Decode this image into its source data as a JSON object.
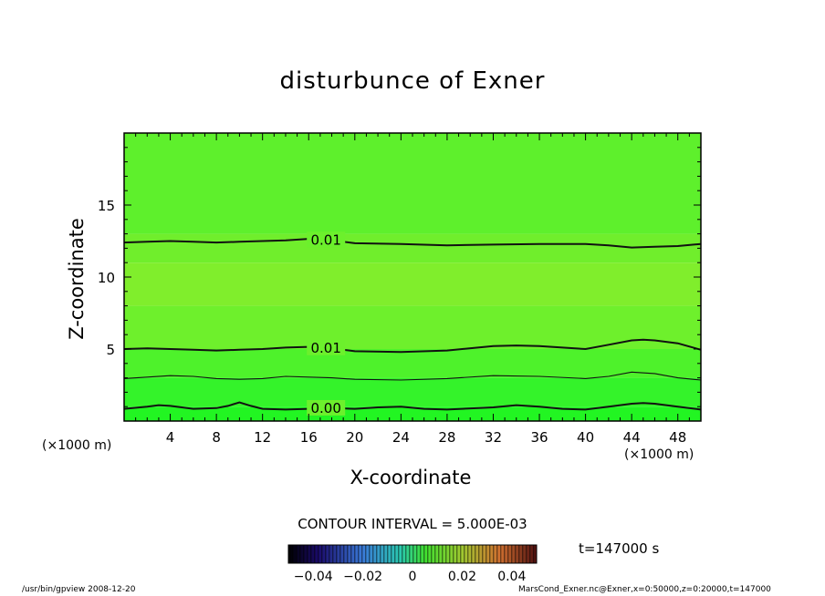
{
  "chart_data": {
    "type": "heatmap",
    "title": "disturbunce of Exner",
    "xlabel": "X-coordinate",
    "ylabel": "Z-coordinate",
    "x_unit_label": "(×1000 m)",
    "xlim": [
      0,
      50
    ],
    "ylim": [
      0,
      20
    ],
    "x_ticks": [
      4,
      8,
      12,
      16,
      20,
      24,
      28,
      32,
      36,
      40,
      44,
      48
    ],
    "y_ticks": [
      5,
      10,
      15
    ],
    "contour_interval_text": "CONTOUR INTERVAL = 5.000E-03",
    "colorbar": {
      "range": [
        -0.05,
        0.05
      ],
      "tick_values": [
        -0.04,
        -0.02,
        0,
        0.02,
        0.04
      ],
      "tick_labels": [
        "−0.04",
        "−0.02",
        "0",
        "0.02",
        "0.04"
      ]
    },
    "field_bands": [
      {
        "z_from": 0,
        "z_to": 1,
        "color": "#22f522"
      },
      {
        "z_from": 1,
        "z_to": 3,
        "color": "#34f32a"
      },
      {
        "z_from": 3,
        "z_to": 5,
        "color": "#4ef22b"
      },
      {
        "z_from": 5,
        "z_to": 8,
        "color": "#6ef02c"
      },
      {
        "z_from": 8,
        "z_to": 11,
        "color": "#80ee2c"
      },
      {
        "z_from": 11,
        "z_to": 13,
        "color": "#70ee2c"
      },
      {
        "z_from": 13,
        "z_to": 20,
        "color": "#5ef02c"
      }
    ],
    "contours": [
      {
        "label": "0.01",
        "label_x": 17.5,
        "weight": "bold",
        "x": [
          0,
          2,
          4,
          6,
          8,
          10,
          12,
          14,
          16,
          18,
          20,
          24,
          28,
          32,
          36,
          40,
          42,
          44,
          46,
          48,
          50
        ],
        "z": [
          12.4,
          12.45,
          12.5,
          12.45,
          12.4,
          12.45,
          12.5,
          12.55,
          12.65,
          12.55,
          12.35,
          12.3,
          12.2,
          12.25,
          12.3,
          12.3,
          12.2,
          12.05,
          12.1,
          12.15,
          12.3
        ]
      },
      {
        "label": "0.01",
        "label_x": 17.5,
        "weight": "bold",
        "x": [
          0,
          2,
          4,
          6,
          8,
          10,
          12,
          14,
          16,
          18,
          20,
          24,
          28,
          32,
          34,
          36,
          40,
          42,
          44,
          45,
          46,
          48,
          50
        ],
        "z": [
          5.0,
          5.05,
          5.0,
          4.95,
          4.9,
          4.95,
          5.0,
          5.1,
          5.15,
          5.05,
          4.85,
          4.8,
          4.9,
          5.2,
          5.25,
          5.2,
          5.0,
          5.3,
          5.6,
          5.65,
          5.6,
          5.4,
          4.95
        ]
      },
      {
        "label": "",
        "label_x": 0,
        "weight": "thin",
        "x": [
          0,
          2,
          4,
          6,
          8,
          10,
          12,
          14,
          16,
          18,
          20,
          24,
          28,
          32,
          36,
          40,
          42,
          44,
          46,
          48,
          50
        ],
        "z": [
          2.95,
          3.05,
          3.15,
          3.1,
          2.95,
          2.9,
          2.95,
          3.1,
          3.05,
          3.0,
          2.9,
          2.85,
          2.95,
          3.15,
          3.1,
          2.95,
          3.1,
          3.4,
          3.3,
          3.0,
          2.85
        ]
      },
      {
        "label": "0.00",
        "label_x": 17.5,
        "weight": "bold",
        "x": [
          0,
          2,
          3,
          4,
          6,
          8,
          9,
          10,
          11,
          12,
          14,
          16,
          18,
          20,
          22,
          24,
          26,
          28,
          32,
          34,
          36,
          38,
          40,
          42,
          44,
          45,
          46,
          48,
          50
        ],
        "z": [
          0.85,
          1.0,
          1.1,
          1.05,
          0.85,
          0.9,
          1.05,
          1.3,
          1.05,
          0.85,
          0.8,
          0.85,
          0.9,
          0.85,
          0.95,
          1.0,
          0.85,
          0.8,
          0.95,
          1.1,
          1.0,
          0.85,
          0.8,
          1.0,
          1.2,
          1.25,
          1.2,
          1.0,
          0.8
        ]
      }
    ]
  },
  "time_label": "t=147000 s",
  "footer_left": "/usr/bin/gpview  2008-12-20",
  "footer_right": "MarsCond_Exner.nc@Exner,x=0:50000,z=0:20000,t=147000"
}
